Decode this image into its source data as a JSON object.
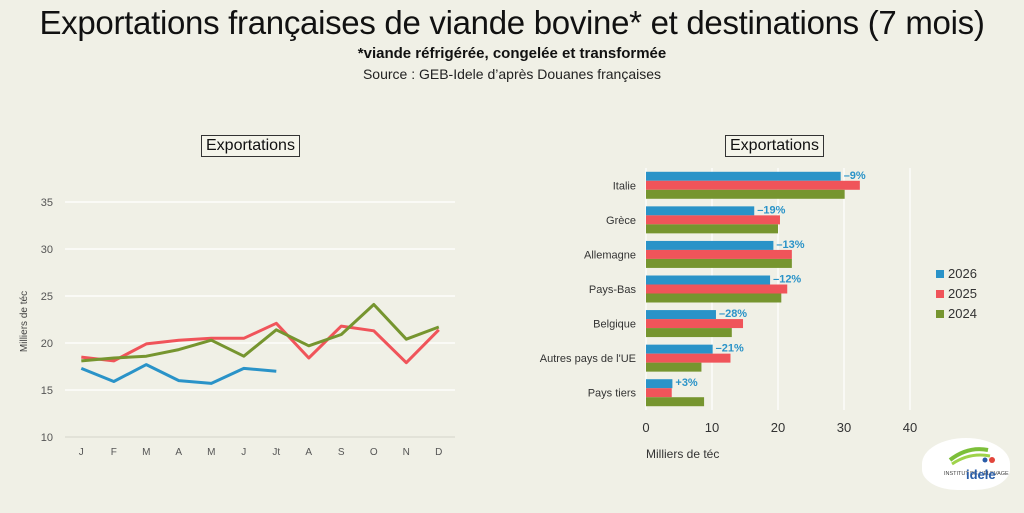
{
  "header": {
    "title": "Exportations françaises de viande bovine* et destinations (7 mois)",
    "subtitle": "*viande réfrigérée, congelée et transformée",
    "source": "Source : GEB-Idele d’après Douanes françaises"
  },
  "logo": {
    "text_top": "INSTITUT DE L'ÉLEVAGE",
    "text_brand": "idele"
  },
  "colors": {
    "s2026": "#2a93c8",
    "s2025": "#f0545a",
    "s2024": "#76952f",
    "annot": "#2a93c8"
  },
  "chart_data": [
    {
      "type": "line",
      "title": "Exportations",
      "ylabel": "Milliers de téc",
      "xlabel": "",
      "categories": [
        "J",
        "F",
        "M",
        "A",
        "M",
        "J",
        "Jt",
        "A",
        "S",
        "O",
        "N",
        "D"
      ],
      "ylim": [
        10,
        35
      ],
      "yticks": [
        10,
        15,
        20,
        25,
        30,
        35
      ],
      "grid": true,
      "series": [
        {
          "key": "s2026",
          "values": [
            17.3,
            15.9,
            17.7,
            16.0,
            15.7,
            17.3,
            17.0,
            null,
            null,
            null,
            null,
            null
          ]
        },
        {
          "key": "s2025",
          "values": [
            18.5,
            18.1,
            19.9,
            20.3,
            20.5,
            20.5,
            22.1,
            18.4,
            21.8,
            21.3,
            17.9,
            21.4
          ]
        },
        {
          "key": "s2024",
          "values": [
            18.1,
            18.4,
            18.6,
            19.3,
            20.3,
            18.6,
            21.4,
            19.7,
            20.9,
            24.1,
            20.4,
            21.7
          ]
        }
      ]
    },
    {
      "type": "bar",
      "orientation": "horizontal",
      "title": "Exportations",
      "xlabel": "Milliers de téc",
      "categories": [
        "Italie",
        "Grèce",
        "Allemagne",
        "Pays-Bas",
        "Belgique",
        "Autres pays de l'UE",
        "Pays tiers"
      ],
      "xlim": [
        0,
        40
      ],
      "xticks": [
        0,
        10,
        20,
        30,
        40
      ],
      "grid": true,
      "legend_position": "right",
      "series": [
        {
          "name": "2026",
          "key": "s2026",
          "values": [
            29.5,
            16.4,
            19.3,
            18.8,
            10.6,
            10.1,
            4.0
          ]
        },
        {
          "name": "2025",
          "key": "s2025",
          "values": [
            32.4,
            20.3,
            22.1,
            21.4,
            14.7,
            12.8,
            3.9
          ]
        },
        {
          "name": "2024",
          "key": "s2024",
          "values": [
            30.1,
            20.0,
            22.1,
            20.5,
            13.0,
            8.4,
            8.8
          ]
        }
      ],
      "annotations": [
        "–9%",
        "–19%",
        "–13%",
        "–12%",
        "–28%",
        "–21%",
        "+3%"
      ]
    }
  ]
}
